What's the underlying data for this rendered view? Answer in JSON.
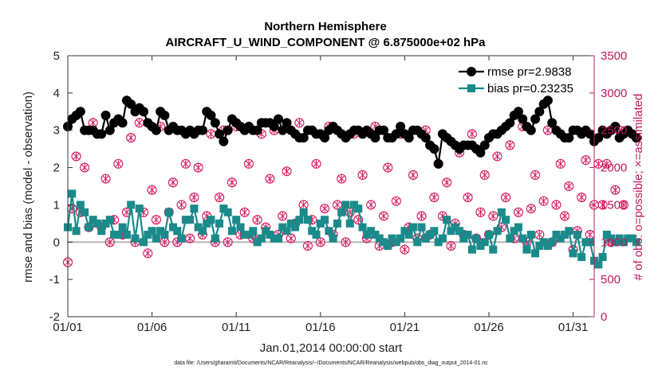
{
  "chart_data": {
    "type": "line",
    "title": "Northern Hemisphere",
    "subtitle": "AIRCRAFT_U_WIND_COMPONENT @ 6.875000e+02 hPa",
    "xlabel": "Jan.01,2014 00:00:00 start",
    "ylabel": "rmse and bias (model - observation)",
    "y2label": "# of obs: o=possible; ×=assimilated",
    "footnote": "data file: /Users/gharamti/Documents/NCAR/Reanalysis/~/Documents/NCAR/Reanalysis/webpub/obs_diag_output_2014-01.nc",
    "xlim": [
      0,
      31.25
    ],
    "ylim": [
      -2,
      5
    ],
    "y2lim": [
      0,
      3500
    ],
    "x_ticks": [
      0,
      5,
      10,
      15,
      20,
      25,
      30
    ],
    "x_tick_labels": [
      "01/01",
      "01/06",
      "01/11",
      "01/16",
      "01/21",
      "01/26",
      "01/31"
    ],
    "y_ticks": [
      -2,
      -1,
      0,
      1,
      2,
      3,
      4,
      5
    ],
    "y2_ticks": [
      0,
      500,
      1000,
      1500,
      2000,
      2500,
      3000,
      3500
    ],
    "x_step_days": 0.25,
    "zero_line": true,
    "legend": {
      "position": "top-right"
    },
    "series": [
      {
        "name": "rmse pr=2.9838",
        "axis": "left",
        "color": "#000000",
        "marker": "circle",
        "values": [
          3.1,
          3.3,
          3.4,
          3.5,
          3.0,
          3.0,
          3.0,
          2.9,
          2.9,
          3.4,
          3.0,
          3.2,
          3.3,
          3.2,
          3.8,
          3.7,
          3.5,
          3.6,
          3.5,
          3.2,
          3.1,
          3.0,
          3.5,
          3.4,
          3.0,
          3.1,
          3.0,
          3.0,
          2.9,
          3.0,
          2.9,
          3.0,
          3.0,
          3.5,
          3.4,
          3.2,
          2.9,
          2.7,
          3.0,
          3.3,
          3.2,
          3.1,
          3.0,
          3.1,
          3.0,
          3.0,
          3.2,
          3.2,
          3.2,
          3.1,
          3.3,
          3.0,
          3.2,
          3.0,
          2.9,
          2.8,
          2.8,
          3.0,
          3.0,
          2.9,
          2.9,
          2.8,
          3.0,
          3.1,
          3.0,
          2.9,
          2.8,
          2.9,
          3.0,
          3.0,
          2.9,
          3.0,
          2.9,
          2.8,
          3.0,
          3.0,
          2.8,
          2.8,
          2.9,
          3.1,
          2.9,
          2.8,
          3.0,
          3.0,
          2.9,
          2.8,
          2.6,
          2.5,
          2.1,
          2.9,
          2.8,
          2.7,
          2.6,
          2.5,
          2.6,
          2.6,
          2.6,
          2.5,
          2.4,
          2.6,
          2.8,
          2.9,
          2.9,
          3.0,
          3.1,
          3.2,
          3.4,
          3.5,
          3.3,
          3.1,
          3.0,
          3.3,
          3.5,
          3.7,
          3.8,
          3.2,
          3.0,
          2.9,
          2.8,
          2.8,
          3.0,
          3.0,
          2.9,
          3.0,
          2.9,
          2.7,
          2.8,
          3.0,
          2.9,
          3.0,
          3.1,
          2.8,
          2.9,
          3.0,
          2.9,
          2.8
        ]
      },
      {
        "name": "bias pr=0.23235",
        "axis": "left",
        "color": "#1a8a8a",
        "marker": "square",
        "values": [
          0.4,
          1.3,
          0.3,
          1.0,
          0.8,
          0.4,
          0.6,
          0.5,
          0.3,
          0.5,
          0.6,
          0.2,
          0.2,
          0.4,
          0.2,
          1.0,
          0.1,
          0.9,
          0.0,
          0.2,
          0.3,
          0.1,
          0.3,
          0.2,
          0.8,
          0.4,
          0.3,
          0.1,
          0.6,
          0.6,
          0.9,
          0.4,
          0.3,
          0.5,
          0.6,
          0.1,
          0.5,
          0.9,
          0.8,
          0.3,
          0.6,
          0.4,
          0.2,
          0.2,
          0.3,
          0.0,
          0.1,
          0.3,
          0.2,
          0.1,
          0.1,
          0.4,
          0.3,
          0.5,
          0.4,
          0.6,
          0.8,
          0.6,
          0.3,
          0.2,
          0.5,
          0.6,
          0.3,
          0.1,
          0.5,
          0.8,
          1.0,
          0.5,
          1.0,
          0.9,
          0.4,
          0.2,
          0.3,
          0.2,
          0.1,
          0.0,
          -0.1,
          0.1,
          0.0,
          0.1,
          0.3,
          0.2,
          0.4,
          0.0,
          0.4,
          0.1,
          0.2,
          0.3,
          0.0,
          0.1,
          0.6,
          0.3,
          0.4,
          0.3,
          0.1,
          0.2,
          -0.2,
          0.1,
          -0.1,
          0.0,
          0.2,
          -0.2,
          0.3,
          0.8,
          0.6,
          0.1,
          0.3,
          0.4,
          0.1,
          -0.2,
          0.2,
          -0.3,
          -0.1,
          0.0,
          -0.1,
          0.0,
          0.2,
          0.1,
          0.2,
          0.3,
          -0.3,
          0.2,
          -0.4,
          0.0,
          0.0,
          -0.5,
          -0.6,
          -0.4,
          0.2,
          0.1,
          0.0,
          0.1,
          0.0,
          0.1,
          0.1,
          0.0
        ]
      },
      {
        "name": "possible",
        "axis": "right",
        "color": "#d81b60",
        "marker": "open-circle",
        "values": [
          730,
          1450,
          2150,
          1400,
          2000,
          1200,
          2600,
          2450,
          1200,
          1850,
          1000,
          1300,
          2050,
          1100,
          1400,
          2400,
          1000,
          2600,
          1400,
          850,
          1700,
          1300,
          2550,
          1000,
          1400,
          1800,
          1000,
          1500,
          2050,
          1050,
          1600,
          2000,
          1100,
          1350,
          2450,
          1000,
          1600,
          2500,
          1000,
          1800,
          2550,
          1100,
          1400,
          2050,
          1050,
          1300,
          2450,
          1200,
          1850,
          2500,
          1100,
          1350,
          1950,
          1050,
          1250,
          2600,
          1500,
          950,
          1300,
          2050,
          1000,
          1450,
          2550,
          1100,
          1500,
          1850,
          1000,
          1400,
          2450,
          1300,
          1900,
          1050,
          1500,
          2550,
          950,
          1350,
          2000,
          1000,
          1550,
          2450,
          900,
          1200,
          1900,
          1050,
          1350,
          2500,
          1100,
          1600,
          2050,
          1350,
          1800,
          950,
          1250,
          2200,
          1100,
          1600,
          2450,
          1050,
          1400,
          1900,
          1100,
          1350,
          2150,
          1200,
          1600,
          2300,
          1050,
          1400,
          2550,
          1000,
          1450,
          1900,
          1100,
          1550,
          2500,
          1000,
          1500,
          2050,
          1350,
          1750,
          900,
          1150,
          1600,
          2100,
          1100,
          1500,
          2050,
          1500,
          2050,
          1000,
          1700,
          2500,
          1500
        ]
      },
      {
        "name": "assimilated",
        "axis": "right",
        "color": "#d81b60",
        "marker": "cross",
        "values": [
          730,
          1450,
          2150,
          1400,
          2000,
          1200,
          2600,
          2450,
          1200,
          1850,
          1000,
          1300,
          2050,
          1100,
          1400,
          2400,
          1000,
          2600,
          1400,
          850,
          1700,
          1300,
          2550,
          1000,
          1400,
          1800,
          1000,
          1500,
          2050,
          1050,
          1600,
          2000,
          1100,
          1350,
          2450,
          1000,
          1600,
          2500,
          1000,
          1800,
          2550,
          1100,
          1400,
          2050,
          1050,
          1300,
          2450,
          1200,
          1850,
          2500,
          1100,
          1350,
          1950,
          1050,
          1250,
          2600,
          1500,
          950,
          1300,
          2050,
          1000,
          1450,
          2550,
          1100,
          1500,
          1850,
          1000,
          1400,
          2450,
          1300,
          1900,
          1050,
          1500,
          2550,
          950,
          1350,
          2000,
          1000,
          1550,
          2450,
          900,
          1200,
          1900,
          1050,
          1350,
          2500,
          1100,
          1600,
          2050,
          1350,
          1800,
          950,
          1250,
          2200,
          1100,
          1600,
          2450,
          1050,
          1400,
          1900,
          1100,
          1350,
          2150,
          1200,
          1600,
          2300,
          1050,
          1400,
          2550,
          1000,
          1450,
          1900,
          1100,
          1550,
          2500,
          1000,
          1500,
          2050,
          1350,
          1750,
          900,
          1150,
          1600,
          2100,
          1100,
          1500,
          2050,
          1500,
          2050,
          1000,
          1700,
          2500,
          1500
        ]
      }
    ]
  }
}
